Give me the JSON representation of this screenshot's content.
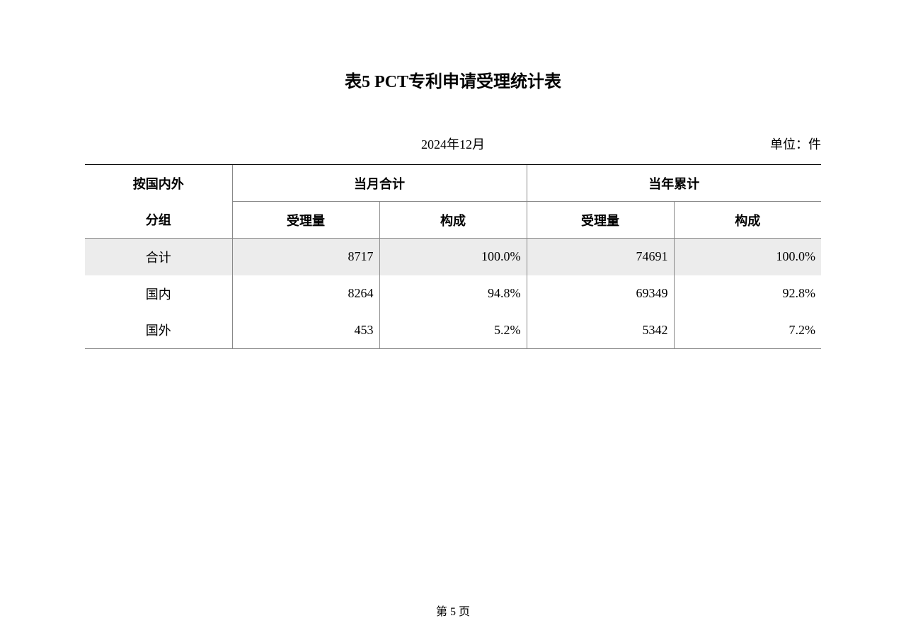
{
  "title": "表5  PCT专利申请受理统计表",
  "date": "2024年12月",
  "unit": "单位：件",
  "headers": {
    "group_top": "按国内外",
    "group_bottom": "分组",
    "month_total": "当月合计",
    "year_total": "当年累计",
    "acceptance": "受理量",
    "composition": "构成"
  },
  "rows": [
    {
      "label": "合计",
      "m_acc": "8717",
      "m_comp": "100.0%",
      "y_acc": "74691",
      "y_comp": "100.0%",
      "shaded": true
    },
    {
      "label": "国内",
      "m_acc": "8264",
      "m_comp": "94.8%",
      "y_acc": "69349",
      "y_comp": "92.8%",
      "shaded": false
    },
    {
      "label": "国外",
      "m_acc": "453",
      "m_comp": "5.2%",
      "y_acc": "5342",
      "y_comp": "7.2%",
      "shaded": false
    }
  ],
  "footer": "第  5  页",
  "colors": {
    "border_main": "#000000",
    "border_inner": "#888888",
    "shaded_bg": "#ececec",
    "background": "#ffffff",
    "text": "#000000"
  },
  "typography": {
    "title_fontsize": 24,
    "body_fontsize": 18,
    "footer_fontsize": 16
  }
}
